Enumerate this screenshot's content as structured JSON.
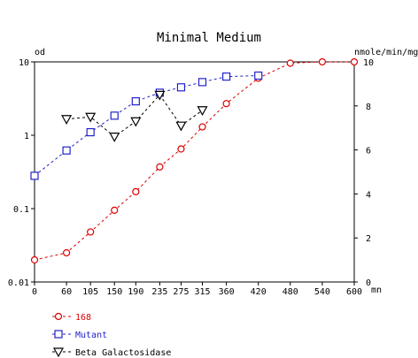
{
  "chart_data": {
    "type": "line",
    "title": "Minimal Medium",
    "y_left_label": "od",
    "y_right_label": "nmole/min/mg",
    "x_unit_label": "mn",
    "x_ticks": [
      0,
      60,
      105,
      150,
      190,
      235,
      275,
      315,
      360,
      420,
      480,
      540,
      600
    ],
    "x_tick_labels": [
      "0",
      "60",
      "105",
      "150",
      "190",
      "235",
      "275",
      "315",
      "360",
      "420",
      "480",
      "540",
      "600"
    ],
    "y_left_ticks": [
      0.01,
      0.1,
      1,
      10
    ],
    "y_left_tick_labels": [
      "0.01",
      "0.1",
      "1",
      "10"
    ],
    "y_left_scale": "log",
    "y_left_range": [
      0.01,
      10
    ],
    "y_right_ticks": [
      0,
      2,
      4,
      6,
      8,
      10
    ],
    "y_right_tick_labels": [
      "0",
      "2",
      "4",
      "6",
      "8",
      "10"
    ],
    "y_right_range": [
      0,
      10
    ],
    "grid": false,
    "legend_position": "bottom-left",
    "series": [
      {
        "name": "168",
        "axis": "left",
        "marker": "circle",
        "color": "#dd0000",
        "x": [
          0,
          60,
          105,
          150,
          190,
          235,
          275,
          315,
          360,
          420,
          480,
          540,
          600
        ],
        "y": [
          0.02,
          0.025,
          0.048,
          0.095,
          0.17,
          0.37,
          0.65,
          1.3,
          2.7,
          6.0,
          9.6,
          10.0,
          10.0
        ]
      },
      {
        "name": "Mutant",
        "axis": "left",
        "marker": "square",
        "color": "#2222cc",
        "x": [
          0,
          60,
          105,
          150,
          190,
          235,
          275,
          315,
          360,
          420
        ],
        "y": [
          0.28,
          0.62,
          1.1,
          1.85,
          2.9,
          3.8,
          4.5,
          5.3,
          6.3,
          6.5
        ]
      },
      {
        "name": "Beta Galactosidase",
        "axis": "right",
        "marker": "triangle-down",
        "color": "#000000",
        "x": [
          60,
          105,
          150,
          190,
          235,
          275,
          315
        ],
        "y": [
          7.4,
          7.5,
          6.6,
          7.3,
          8.5,
          7.1,
          7.8
        ]
      }
    ]
  }
}
